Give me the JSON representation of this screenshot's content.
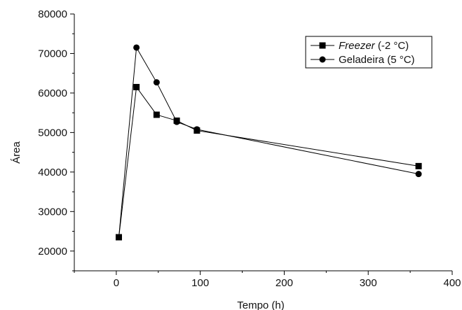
{
  "chart_data": {
    "type": "line",
    "xlabel": "Tempo (h)",
    "ylabel": "Área",
    "xlim": [
      -50,
      400
    ],
    "ylim": [
      15000,
      80000
    ],
    "x_ticks": [
      0,
      100,
      200,
      300,
      400
    ],
    "x_tick_labels": [
      "0",
      "100",
      "200",
      "300",
      "400"
    ],
    "y_ticks": [
      20000,
      30000,
      40000,
      50000,
      60000,
      70000,
      80000
    ],
    "y_tick_labels": [
      "20000",
      "30000",
      "40000",
      "50000",
      "60000",
      "70000",
      "80000"
    ],
    "grid": false,
    "legend_position": "top-right",
    "series": [
      {
        "name_parts": [
          [
            "Freezer",
            true
          ],
          [
            " (-2 °C)",
            false
          ]
        ],
        "marker": "square",
        "color": "#000000",
        "x": [
          3,
          24,
          48,
          72,
          96,
          360
        ],
        "y": [
          23500,
          61500,
          54500,
          53000,
          50500,
          41500
        ]
      },
      {
        "name_parts": [
          [
            "Geladeira (5 °C)",
            false
          ]
        ],
        "marker": "circle",
        "color": "#000000",
        "x": [
          3,
          24,
          48,
          72,
          96,
          360
        ],
        "y": [
          23500,
          71500,
          62700,
          52700,
          50800,
          39500
        ]
      }
    ]
  }
}
